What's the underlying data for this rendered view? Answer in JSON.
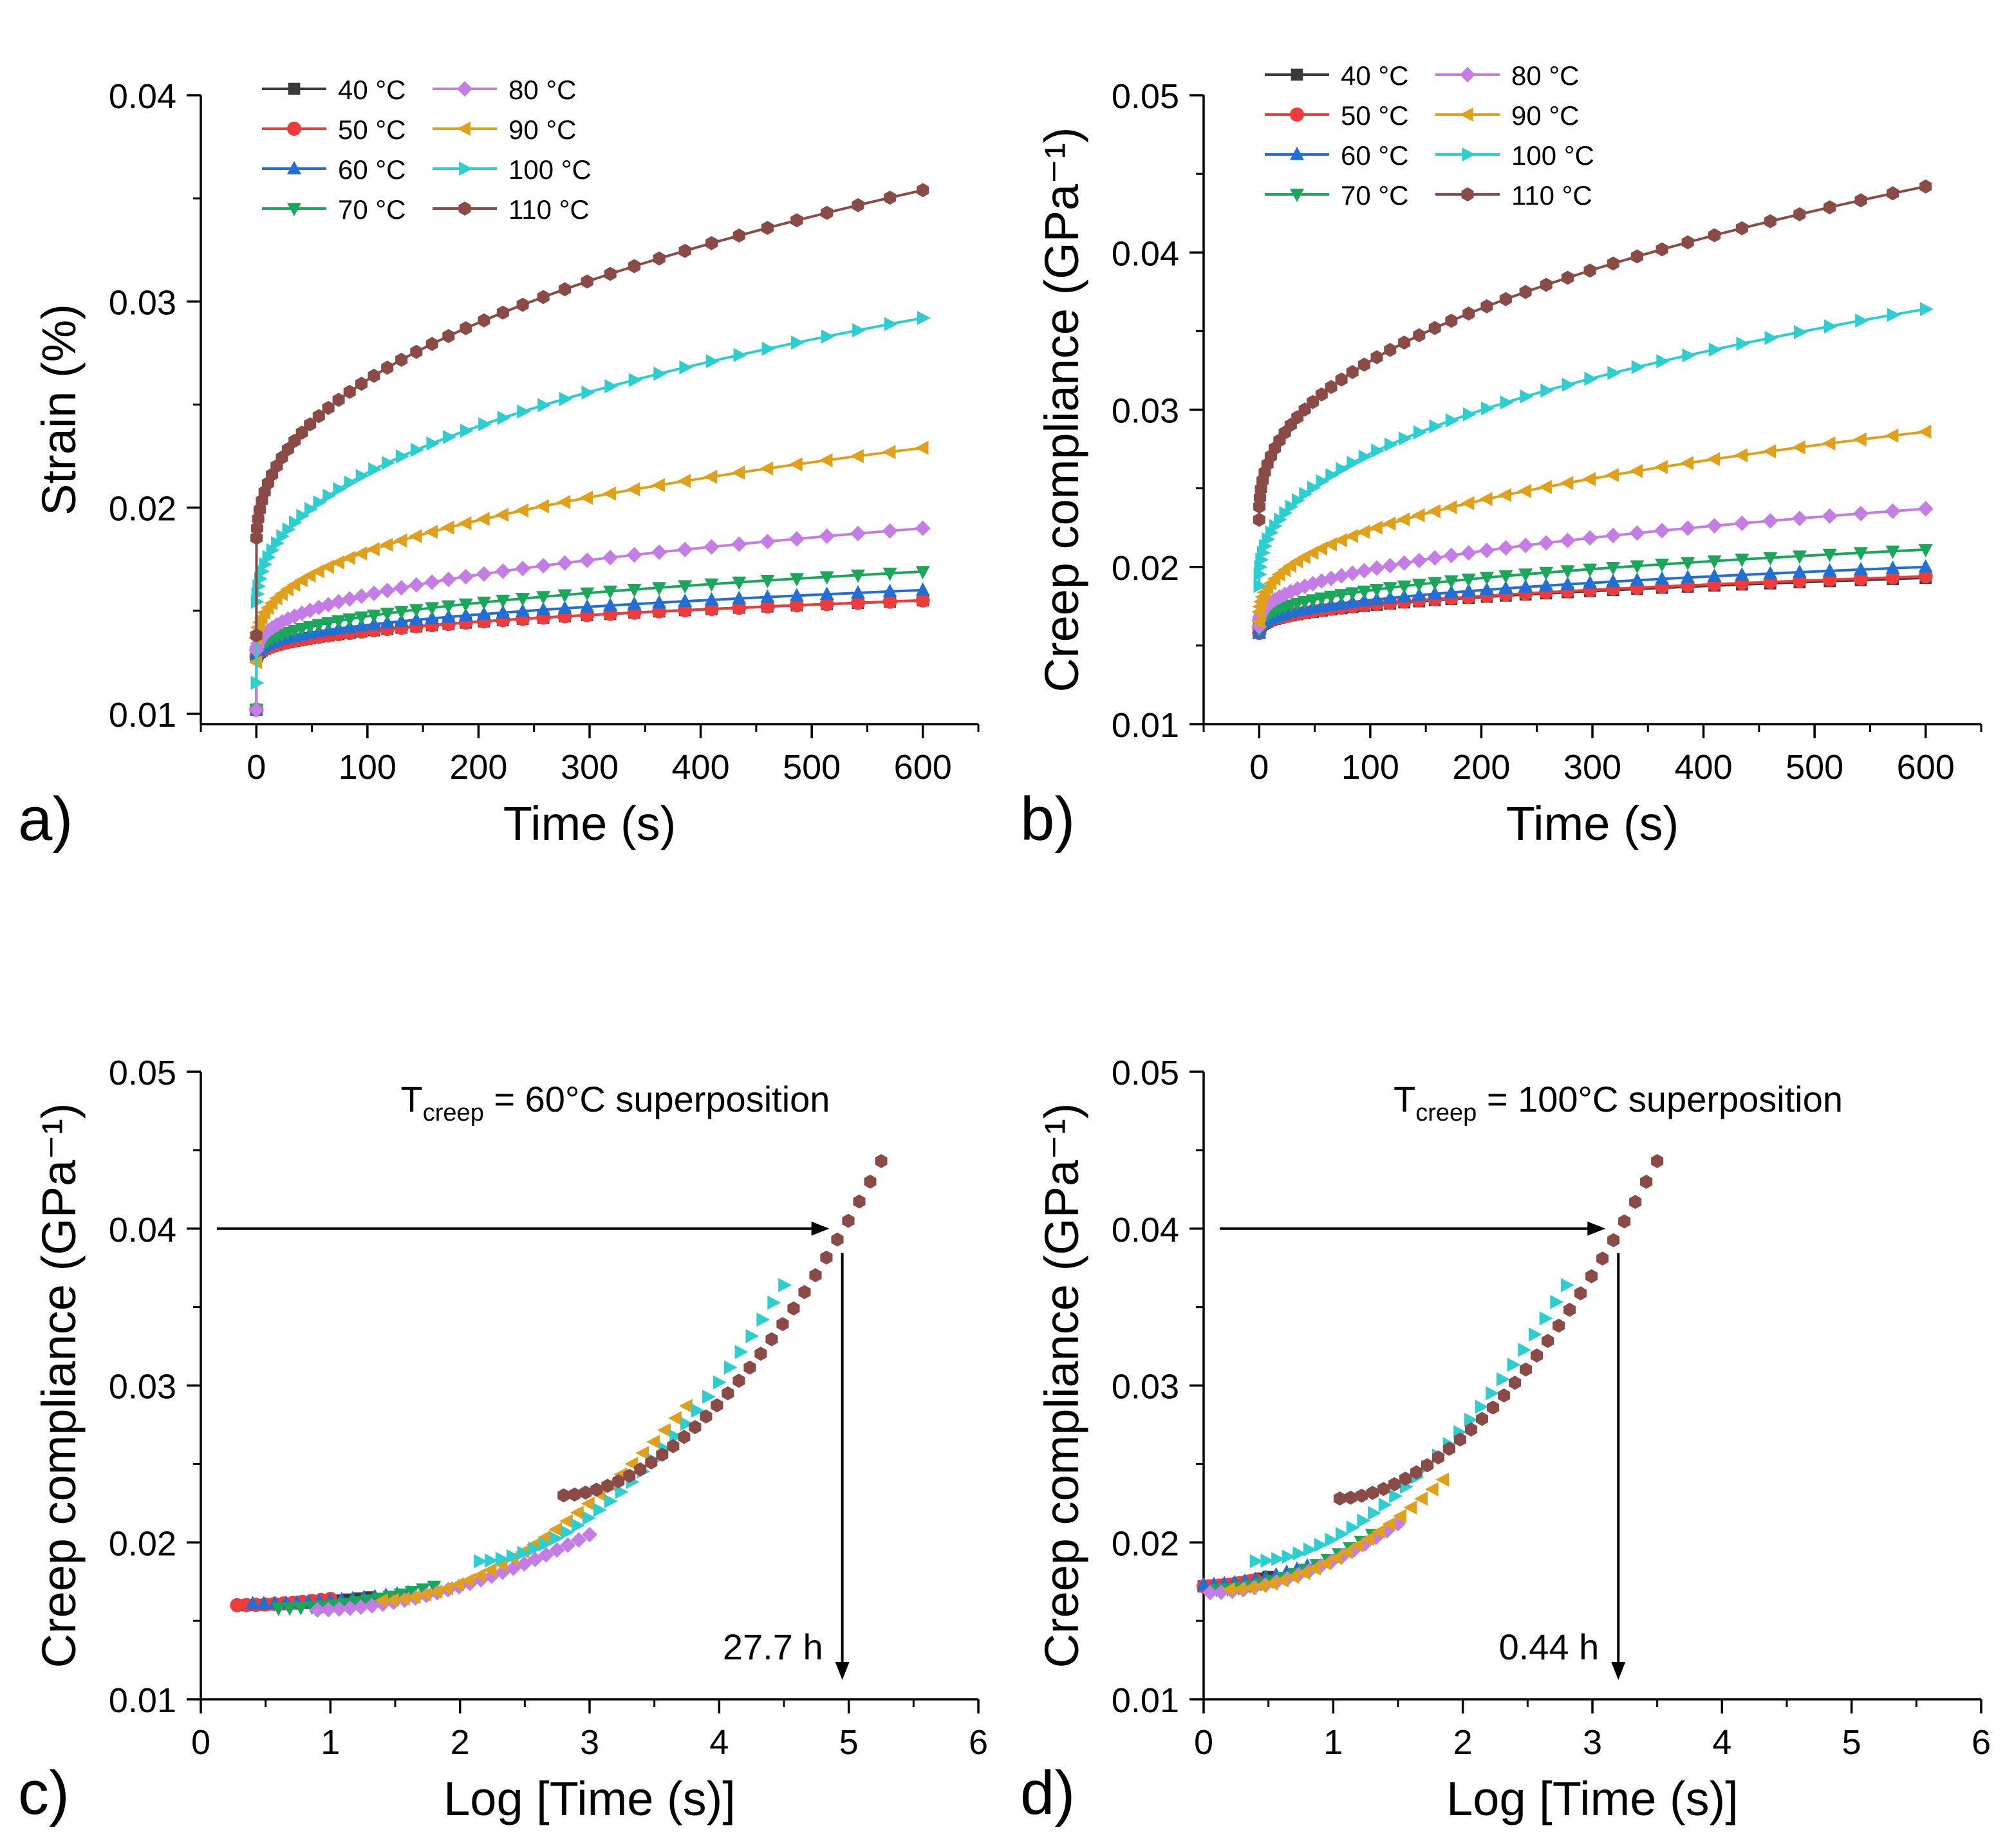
{
  "colors": {
    "40": "#3a3a3a",
    "50": "#ee3b3b",
    "60": "#1f6fd6",
    "70": "#1aa75a",
    "80": "#c57de6",
    "90": "#e0a019",
    "100": "#2ccfcf",
    "110": "#8a4b46"
  },
  "legend": {
    "entries": [
      "40 °C",
      "50 °C",
      "60 °C",
      "70 °C",
      "80 °C",
      "90 °C",
      "100 °C",
      "110 °C"
    ]
  },
  "panels": {
    "a": {
      "label": "a)"
    },
    "b": {
      "label": "b)"
    },
    "c": {
      "label": "c)"
    },
    "d": {
      "label": "d)"
    }
  },
  "chart_data": [
    {
      "id": "a",
      "type": "line",
      "xlabel": "Time (s)",
      "ylabel": "Strain (%)",
      "xlim": [
        -50,
        650
      ],
      "ylim": [
        0.0095,
        0.04
      ],
      "xticks": [
        0,
        100,
        200,
        300,
        400,
        500,
        600
      ],
      "xtick_labels": [
        "0",
        "100",
        "200",
        "300",
        "400",
        "500",
        "600"
      ],
      "yticks": [
        0.01,
        0.02,
        0.03,
        0.04
      ],
      "ytick_labels": [
        "0.01",
        "0.02",
        "0.03",
        "0.04"
      ],
      "legend_position": "top-left",
      "curve_model": "power",
      "x_max": 600,
      "series": [
        {
          "name": "40 °C",
          "temp": "40",
          "start": 0.0102,
          "end": 0.0155,
          "c0": 0.0127
        },
        {
          "name": "50 °C",
          "temp": "50",
          "start": 0.0102,
          "end": 0.0155,
          "c0": 0.0127
        },
        {
          "name": "60 °C",
          "temp": "60",
          "start": 0.0102,
          "end": 0.016,
          "c0": 0.0128
        },
        {
          "name": "70 °C",
          "temp": "70",
          "start": 0.0102,
          "end": 0.0169,
          "c0": 0.0128
        },
        {
          "name": "80 °C",
          "temp": "80",
          "start": 0.0102,
          "end": 0.019,
          "c0": 0.0129
        },
        {
          "name": "90 °C",
          "temp": "90",
          "start": 0.0125,
          "end": 0.0229,
          "c0": 0.0134
        },
        {
          "name": "100 °C",
          "temp": "100",
          "start": 0.0115,
          "end": 0.0292,
          "c0": 0.015
        },
        {
          "name": "110 °C",
          "temp": "110",
          "start": 0.0138,
          "end": 0.0354,
          "c0": 0.018
        }
      ]
    },
    {
      "id": "b",
      "type": "line",
      "xlabel": "Time (s)",
      "ylabel": "Creep compliance (GPa⁻¹)",
      "xlim": [
        -50,
        650
      ],
      "ylim": [
        0.01,
        0.05
      ],
      "xticks": [
        0,
        100,
        200,
        300,
        400,
        500,
        600
      ],
      "xtick_labels": [
        "0",
        "100",
        "200",
        "300",
        "400",
        "500",
        "600"
      ],
      "yticks": [
        0.01,
        0.02,
        0.03,
        0.04,
        0.05
      ],
      "ytick_labels": [
        "0.01",
        "0.02",
        "0.03",
        "0.04",
        "0.05"
      ],
      "legend_position": "top-left",
      "curve_model": "power",
      "x_max": 600,
      "series": [
        {
          "name": "40 °C",
          "temp": "40",
          "start": 0.0158,
          "end": 0.0193,
          "c0": 0.016
        },
        {
          "name": "50 °C",
          "temp": "50",
          "start": 0.0158,
          "end": 0.0194,
          "c0": 0.016
        },
        {
          "name": "60 °C",
          "temp": "60",
          "start": 0.0158,
          "end": 0.02,
          "c0": 0.016
        },
        {
          "name": "70 °C",
          "temp": "70",
          "start": 0.016,
          "end": 0.0211,
          "c0": 0.0162
        },
        {
          "name": "80 °C",
          "temp": "80",
          "start": 0.0162,
          "end": 0.0237,
          "c0": 0.0164
        },
        {
          "name": "90 °C",
          "temp": "90",
          "start": 0.0165,
          "end": 0.0286,
          "c0": 0.0168
        },
        {
          "name": "100 °C",
          "temp": "100",
          "start": 0.0188,
          "end": 0.0364,
          "c0": 0.019
        },
        {
          "name": "110 °C",
          "temp": "110",
          "start": 0.023,
          "end": 0.0442,
          "c0": 0.0232
        }
      ]
    },
    {
      "id": "c",
      "type": "scatter",
      "xlabel": "Log [Time (s)]",
      "ylabel": "Creep compliance (GPa⁻¹)",
      "xlim": [
        0,
        6
      ],
      "ylim": [
        0.01,
        0.05
      ],
      "xticks": [
        0,
        1,
        2,
        3,
        4,
        5,
        6
      ],
      "xtick_labels": [
        "0",
        "1",
        "2",
        "3",
        "4",
        "5",
        "6"
      ],
      "yticks": [
        0.01,
        0.02,
        0.03,
        0.04,
        0.05
      ],
      "ytick_labels": [
        "0.01",
        "0.02",
        "0.03",
        "0.04",
        "0.05"
      ],
      "title_main": "T",
      "title_sub": "creep",
      "title_rest": " = 60°C superposition",
      "arrow_y": 0.04,
      "arrow_x": 4.95,
      "annotation": "27.7 h",
      "series": [
        {
          "name": "40 °C",
          "temp": "40",
          "x_range": [
            0.3,
            1.3
          ],
          "y_range": [
            0.016,
            0.0165
          ]
        },
        {
          "name": "50 °C",
          "temp": "50",
          "x_range": [
            0.28,
            1.0
          ],
          "y_range": [
            0.016,
            0.0164
          ]
        },
        {
          "name": "60 °C",
          "temp": "60",
          "x_range": [
            0.4,
            1.6
          ],
          "y_range": [
            0.0161,
            0.0168
          ]
        },
        {
          "name": "70 °C",
          "temp": "70",
          "x_range": [
            0.6,
            1.8
          ],
          "y_range": [
            0.0158,
            0.0172
          ]
        },
        {
          "name": "80 °C",
          "temp": "80",
          "x_range": [
            0.9,
            3.0
          ],
          "y_range": [
            0.0157,
            0.0205
          ]
        },
        {
          "name": "90 °C",
          "temp": "90",
          "x_range": [
            1.4,
            3.75
          ],
          "y_range": [
            0.0163,
            0.0287
          ]
        },
        {
          "name": "100 °C",
          "temp": "100",
          "x_range": [
            2.15,
            4.5
          ],
          "y_range": [
            0.0188,
            0.0364
          ]
        },
        {
          "name": "110 °C",
          "temp": "110",
          "x_range": [
            2.8,
            5.25
          ],
          "y_range": [
            0.023,
            0.0443
          ]
        }
      ]
    },
    {
      "id": "d",
      "type": "scatter",
      "xlabel": "Log [Time (s)]",
      "ylabel": "Creep compliance (GPa⁻¹)",
      "xlim": [
        0,
        6
      ],
      "ylim": [
        0.01,
        0.05
      ],
      "xticks": [
        0,
        1,
        2,
        3,
        4,
        5,
        6
      ],
      "xtick_labels": [
        "0",
        "1",
        "2",
        "3",
        "4",
        "5",
        "6"
      ],
      "yticks": [
        0.01,
        0.02,
        0.03,
        0.04,
        0.05
      ],
      "ytick_labels": [
        "0.01",
        "0.02",
        "0.03",
        "0.04",
        "0.05"
      ],
      "title_main": "T",
      "title_sub": "creep",
      "title_rest": " = 100°C superposition",
      "arrow_y": 0.04,
      "arrow_x": 3.2,
      "annotation": "0.44 h",
      "series": [
        {
          "name": "40 °C",
          "temp": "40",
          "x_range": [
            0.0,
            0.5
          ],
          "y_range": [
            0.0172,
            0.0178
          ]
        },
        {
          "name": "50 °C",
          "temp": "50",
          "x_range": [
            0.0,
            0.4
          ],
          "y_range": [
            0.0172,
            0.0176
          ]
        },
        {
          "name": "60 °C",
          "temp": "60",
          "x_range": [
            0.0,
            0.8
          ],
          "y_range": [
            0.0173,
            0.0185
          ]
        },
        {
          "name": "70 °C",
          "temp": "70",
          "x_range": [
            0.1,
            1.3
          ],
          "y_range": [
            0.017,
            0.0205
          ]
        },
        {
          "name": "80 °C",
          "temp": "80",
          "x_range": [
            0.05,
            1.5
          ],
          "y_range": [
            0.0168,
            0.0212
          ]
        },
        {
          "name": "90 °C",
          "temp": "90",
          "x_range": [
            0.2,
            1.85
          ],
          "y_range": [
            0.017,
            0.024
          ]
        },
        {
          "name": "100 °C",
          "temp": "100",
          "x_range": [
            0.4,
            2.8
          ],
          "y_range": [
            0.0188,
            0.0364
          ]
        },
        {
          "name": "110 °C",
          "temp": "110",
          "x_range": [
            1.05,
            3.5
          ],
          "y_range": [
            0.0228,
            0.0443
          ]
        }
      ]
    }
  ]
}
